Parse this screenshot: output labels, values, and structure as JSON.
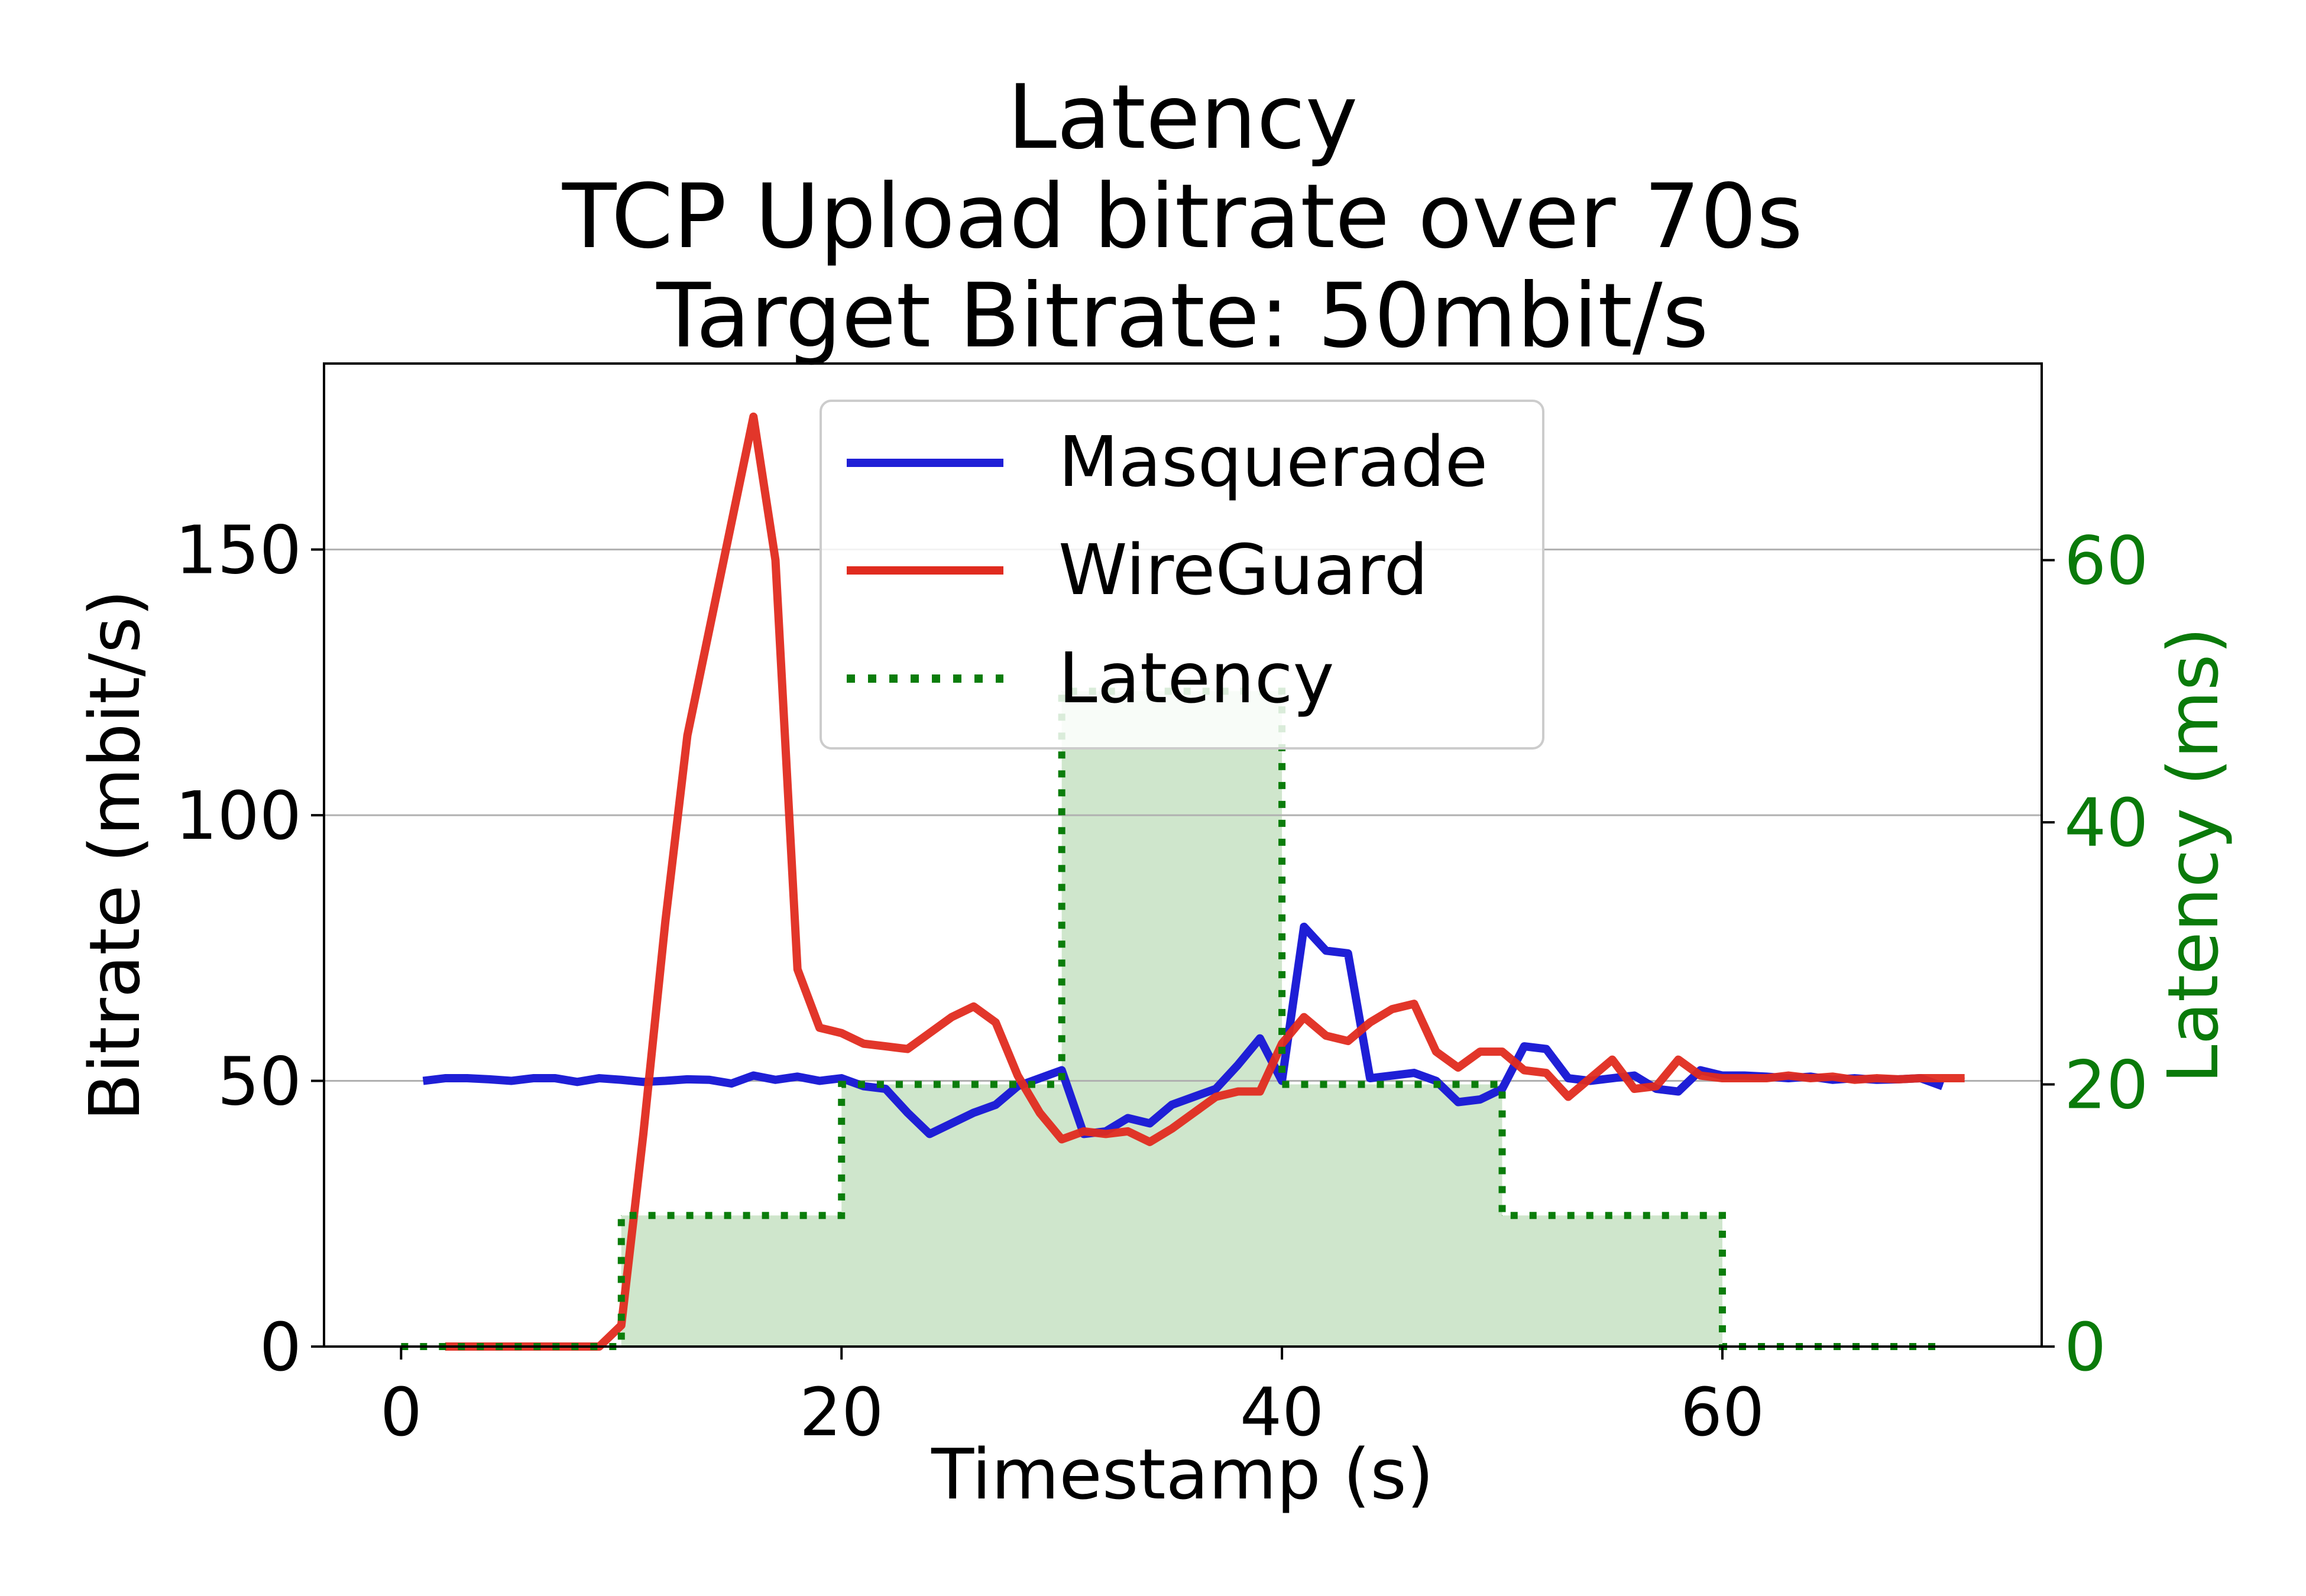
{
  "chart_data": {
    "type": "line",
    "title": [
      "Latency",
      "TCP Upload bitrate over 70s",
      "Target Bitrate: 50mbit/s"
    ],
    "xlabel": "Timestamp (s)",
    "ylabel": "Bitrate (mbit/s)",
    "y2label": "Latency (ms)",
    "xlim": [
      -3.5,
      74.5
    ],
    "ylim": [
      0,
      185
    ],
    "y2lim": [
      0,
      75
    ],
    "xticks": [
      0,
      20,
      40,
      60
    ],
    "yticks": [
      0,
      50,
      100,
      150
    ],
    "y2ticks": [
      0,
      20,
      40,
      60
    ],
    "grid": "horizontal",
    "legend_position": "top-center",
    "colors": {
      "Masquerade": "#1f1fd6",
      "WireGuard": "#e02b1f",
      "Latency": "#0b7d0b",
      "latency_fill": "#cfe6cc",
      "right_axis": "#0a7a0a"
    },
    "series": [
      {
        "name": "Masquerade",
        "axis": "left",
        "style": "solid",
        "x": [
          1,
          2,
          3,
          4,
          5,
          6,
          7,
          8,
          9,
          10,
          11,
          12,
          13,
          14,
          15,
          16,
          17,
          18,
          19,
          20,
          21,
          22,
          23,
          24,
          25,
          26,
          27,
          28,
          29,
          30,
          31,
          32,
          33,
          34,
          35,
          36,
          37,
          38,
          39,
          40,
          41,
          42,
          43,
          44,
          45,
          46,
          47,
          48,
          49,
          50,
          51,
          52,
          53,
          54,
          55,
          56,
          57,
          58,
          59,
          60,
          61,
          62,
          63,
          64,
          65,
          66,
          67,
          68,
          69,
          70
        ],
        "values": [
          50,
          50.5,
          50.5,
          50.3,
          50,
          50.5,
          50.5,
          49.8,
          50.5,
          50.2,
          49.8,
          50,
          50.3,
          50.2,
          49.5,
          51,
          50.2,
          50.8,
          50,
          50.5,
          49,
          48.5,
          44,
          40,
          42,
          44,
          45.5,
          49,
          50.5,
          52,
          40,
          40.5,
          43,
          42,
          45.5,
          47,
          48.5,
          53,
          58,
          50,
          79,
          74.5,
          74,
          50.5,
          51,
          51.5,
          50,
          46,
          46.5,
          48.5,
          56.5,
          56,
          50.5,
          50,
          50.5,
          51,
          48.5,
          48,
          52,
          51,
          51,
          50.8,
          50.5,
          50.8,
          50.2,
          50.5,
          50.2,
          50.3,
          50.5,
          49
        ]
      },
      {
        "name": "WireGuard",
        "axis": "left",
        "style": "solid",
        "x": [
          2,
          3,
          4,
          5,
          6,
          7,
          8,
          9,
          10,
          11,
          12,
          13,
          14,
          15,
          16,
          17,
          18,
          19,
          20,
          21,
          22,
          23,
          24,
          25,
          26,
          27,
          28,
          29,
          30,
          31,
          32,
          33,
          34,
          35,
          36,
          37,
          38,
          39,
          40,
          41,
          42,
          43,
          44,
          45,
          46,
          47,
          48,
          49,
          50,
          51,
          52,
          53,
          54,
          55,
          56,
          57,
          58,
          59,
          60,
          61,
          62,
          63,
          64,
          65,
          66,
          67,
          68,
          69,
          70,
          71
        ],
        "values": [
          0,
          0,
          0,
          0,
          0,
          0,
          0,
          0,
          4,
          40,
          80,
          115,
          135,
          155,
          175,
          148,
          71,
          60,
          59,
          57,
          56.5,
          56,
          59,
          62,
          64,
          61,
          51,
          44,
          39,
          40.5,
          40,
          40.5,
          38.5,
          41,
          44,
          47,
          48,
          48,
          57,
          62,
          58.5,
          57.5,
          61,
          63.5,
          64.5,
          55.5,
          52.5,
          55.5,
          55.5,
          52,
          51.5,
          47,
          50.5,
          54,
          48.5,
          49,
          54,
          51,
          50.5,
          50.5,
          50.5,
          51,
          50.5,
          50.8,
          50.2,
          50.5,
          50.3,
          50.5,
          50.5,
          50.5
        ]
      },
      {
        "name": "Latency",
        "axis": "right",
        "style": "dotted-step-filled",
        "x": [
          0,
          10,
          20,
          30,
          40,
          50,
          60,
          70
        ],
        "values": [
          0,
          10,
          20,
          50,
          20,
          10,
          0,
          0
        ]
      }
    ]
  }
}
